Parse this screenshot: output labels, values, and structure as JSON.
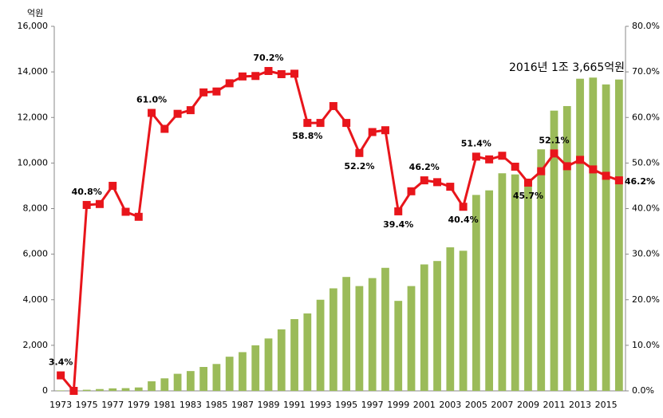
{
  "chart_data": {
    "type": "bar-line",
    "y_unit_label": "억원",
    "annotation": "2016년 1조 3,665억원",
    "categories": [
      "1973",
      null,
      "1975",
      null,
      "1977",
      null,
      "1979",
      null,
      "1981",
      null,
      "1983",
      null,
      "1985",
      null,
      "1987",
      null,
      "1989",
      null,
      "1991",
      null,
      "1993",
      null,
      "1995",
      null,
      "1997",
      null,
      "1999",
      null,
      "2001",
      null,
      "2003",
      null,
      "2005",
      null,
      "2007",
      null,
      "2009",
      null,
      "2011",
      null,
      "2013",
      null,
      "2015",
      null
    ],
    "series": [
      {
        "type": "bar",
        "color": "#9bbb59",
        "values": [
          20,
          10,
          50,
          80,
          110,
          120,
          150,
          420,
          550,
          750,
          870,
          1050,
          1180,
          1500,
          1700,
          2000,
          2300,
          2700,
          3150,
          3400,
          4000,
          4500,
          5000,
          4600,
          4950,
          5400,
          3950,
          4600,
          5550,
          5700,
          6300,
          6150,
          8600,
          8800,
          9550,
          9500,
          9300,
          10600,
          12300,
          12500,
          13700,
          13750,
          13450,
          13665
        ]
      },
      {
        "type": "line",
        "axis": "y2",
        "color": "#e8151b",
        "values": [
          3.4,
          0,
          40.8,
          41.0,
          45.0,
          39.3,
          38.2,
          61.0,
          57.5,
          60.8,
          61.6,
          65.5,
          65.7,
          67.5,
          69.0,
          69.1,
          70.2,
          69.5,
          69.6,
          58.8,
          58.8,
          62.5,
          58.8,
          52.2,
          56.8,
          57.2,
          39.4,
          43.8,
          46.2,
          45.8,
          44.8,
          40.4,
          51.4,
          50.8,
          51.6,
          49.2,
          45.7,
          48.2,
          52.1,
          49.3,
          50.7,
          48.6,
          47.2,
          46.2
        ],
        "value_labels": [
          "3.4%",
          null,
          "40.8%",
          null,
          null,
          null,
          null,
          "61.0%",
          null,
          null,
          null,
          null,
          null,
          null,
          null,
          null,
          "70.2%",
          null,
          null,
          "58.8%",
          null,
          null,
          null,
          "52.2%",
          null,
          null,
          "39.4%",
          null,
          "46.2%",
          null,
          null,
          "40.4%",
          "51.4%",
          null,
          null,
          null,
          "45.7%",
          null,
          "52.1%",
          null,
          null,
          null,
          null,
          "46.2%"
        ]
      }
    ],
    "ylim": [
      0,
      16000
    ],
    "yticks": [
      {
        "value": 0,
        "label": "0"
      },
      {
        "value": 2000,
        "label": "2,000"
      },
      {
        "value": 4000,
        "label": "4,000"
      },
      {
        "value": 6000,
        "label": "6,000"
      },
      {
        "value": 8000,
        "label": "8,000"
      },
      {
        "value": 10000,
        "label": "10,000"
      },
      {
        "value": 12000,
        "label": "12,000"
      },
      {
        "value": 14000,
        "label": "14,000"
      },
      {
        "value": 16000,
        "label": "16,000"
      }
    ],
    "y2lim": [
      0,
      80
    ],
    "y2ticks": [
      {
        "value": 0,
        "label": "0.0%"
      },
      {
        "value": 10,
        "label": "10.0%"
      },
      {
        "value": 20,
        "label": "20.0%"
      },
      {
        "value": 30,
        "label": "30.0%"
      },
      {
        "value": 40,
        "label": "40.0%"
      },
      {
        "value": 50,
        "label": "50.0%"
      },
      {
        "value": 60,
        "label": "60.0%"
      },
      {
        "value": 70,
        "label": "70.0%"
      },
      {
        "value": 80,
        "label": "80.0%"
      }
    ],
    "grid": false
  }
}
